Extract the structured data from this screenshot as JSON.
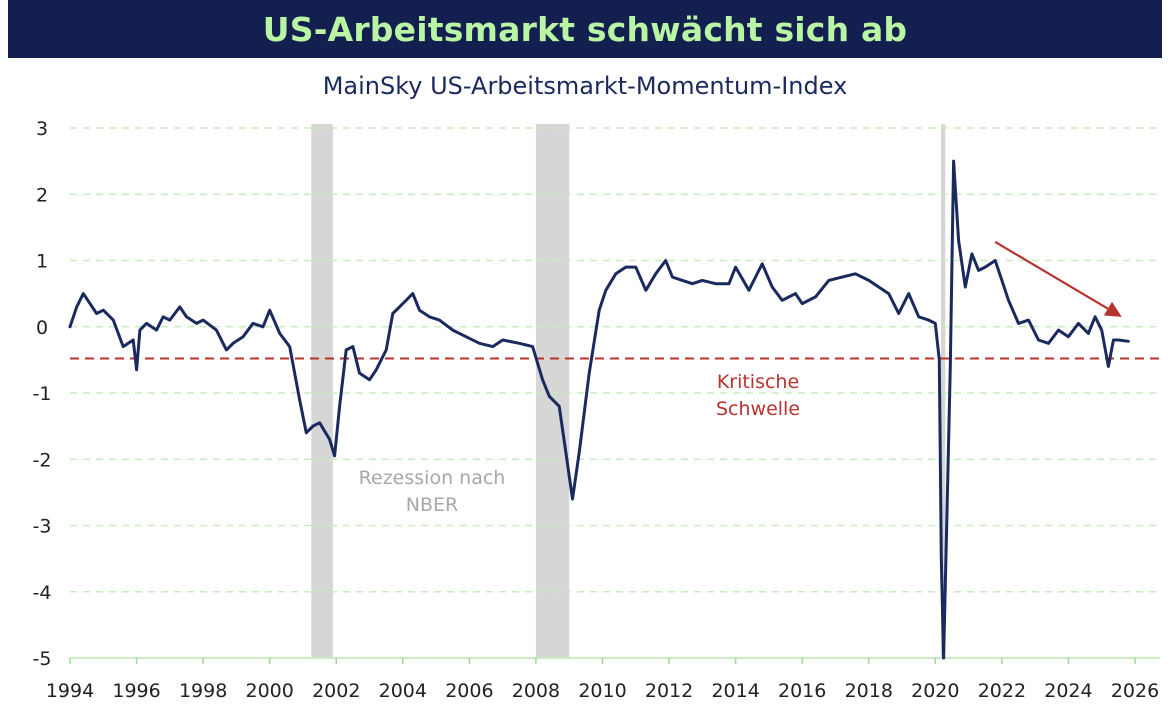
{
  "chart_data": {
    "type": "line",
    "title": "US-Arbeitsmarkt schwächt sich ab",
    "subtitle": "MainSky US-Arbeitsmarkt-Momentum-Index",
    "xlabel": "",
    "ylabel": "",
    "xlim": [
      1994,
      2026
    ],
    "ylim": [
      -5,
      3
    ],
    "x_ticks": [
      "1994",
      "1996",
      "1998",
      "2000",
      "2002",
      "2004",
      "2006",
      "2008",
      "2010",
      "2012",
      "2014",
      "2016",
      "2018",
      "2020",
      "2022",
      "2024",
      "2026"
    ],
    "y_ticks": [
      "3",
      "2",
      "1",
      "0",
      "-1",
      "-2",
      "-3",
      "-4",
      "-5"
    ],
    "grid": "horizontal dashed",
    "colors": {
      "line": "#1b2a5e",
      "threshold": "#b8322e",
      "recession": "#d6d6d6",
      "grid": "#c9ecc0",
      "banner": "#13204f",
      "banner_text": "#b9f5a4"
    },
    "recessions": [
      {
        "start": 2001.25,
        "end": 2001.9
      },
      {
        "start": 2008.0,
        "end": 2009.0
      },
      {
        "start": 2020.17,
        "end": 2020.3
      }
    ],
    "threshold": {
      "value": -0.48,
      "label_line1": "Kritische",
      "label_line2": "Schwelle"
    },
    "recession_label": {
      "line1": "Rezession nach",
      "line2": "NBER"
    },
    "trend_arrow": {
      "from": [
        2021.8,
        1.28
      ],
      "to": [
        2025.6,
        0.15
      ]
    },
    "series": [
      {
        "x": [
          1994.0,
          1994.2,
          1994.4,
          1994.6,
          1994.8,
          1995.0,
          1995.3,
          1995.6,
          1995.9,
          1996.0,
          1996.1,
          1996.3,
          1996.6,
          1996.8,
          1997.0,
          1997.3,
          1997.5,
          1997.8,
          1998.0,
          1998.4,
          1998.7,
          1998.9,
          1999.2,
          1999.5,
          1999.8,
          2000.0,
          2000.3,
          2000.6,
          2000.9,
          2001.1,
          2001.3,
          2001.5,
          2001.8,
          2001.95,
          2002.1,
          2002.3,
          2002.5,
          2002.7,
          2003.0,
          2003.2,
          2003.5,
          2003.7,
          2003.9,
          2004.1,
          2004.3,
          2004.5,
          2004.8,
          2005.1,
          2005.5,
          2005.9,
          2006.3,
          2006.7,
          2007.0,
          2007.5,
          2007.9,
          2008.2,
          2008.4,
          2008.7,
          2008.9,
          2009.1,
          2009.3,
          2009.6,
          2009.9,
          2010.1,
          2010.4,
          2010.7,
          2011.0,
          2011.3,
          2011.6,
          2011.9,
          2012.1,
          2012.4,
          2012.7,
          2013.0,
          2013.4,
          2013.8,
          2014.0,
          2014.4,
          2014.8,
          2015.1,
          2015.4,
          2015.8,
          2016.0,
          2016.4,
          2016.8,
          2017.2,
          2017.6,
          2018.0,
          2018.3,
          2018.6,
          2018.9,
          2019.2,
          2019.5,
          2019.8,
          2020.0,
          2020.12,
          2020.18,
          2020.25,
          2020.35,
          2020.45,
          2020.55,
          2020.7,
          2020.9,
          2021.1,
          2021.3,
          2021.5,
          2021.8,
          2022.0,
          2022.2,
          2022.5,
          2022.8,
          2023.1,
          2023.4,
          2023.7,
          2024.0,
          2024.3,
          2024.6,
          2024.8,
          2025.0,
          2025.2,
          2025.35,
          2025.5,
          2025.8
        ],
        "values": [
          0.0,
          0.3,
          0.5,
          0.35,
          0.2,
          0.25,
          0.1,
          -0.3,
          -0.2,
          -0.65,
          -0.05,
          0.05,
          -0.05,
          0.15,
          0.1,
          0.3,
          0.15,
          0.05,
          0.1,
          -0.05,
          -0.35,
          -0.25,
          -0.15,
          0.05,
          0.0,
          0.25,
          -0.1,
          -0.3,
          -1.1,
          -1.6,
          -1.5,
          -1.45,
          -1.7,
          -1.95,
          -1.2,
          -0.35,
          -0.3,
          -0.7,
          -0.8,
          -0.65,
          -0.35,
          0.2,
          0.3,
          0.4,
          0.5,
          0.25,
          0.15,
          0.1,
          -0.05,
          -0.15,
          -0.25,
          -0.3,
          -0.2,
          -0.25,
          -0.3,
          -0.8,
          -1.05,
          -1.2,
          -1.9,
          -2.6,
          -1.9,
          -0.7,
          0.25,
          0.55,
          0.8,
          0.9,
          0.9,
          0.55,
          0.8,
          1.0,
          0.75,
          0.7,
          0.65,
          0.7,
          0.65,
          0.65,
          0.9,
          0.55,
          0.95,
          0.6,
          0.4,
          0.5,
          0.35,
          0.45,
          0.7,
          0.75,
          0.8,
          0.7,
          0.6,
          0.5,
          0.2,
          0.5,
          0.15,
          0.1,
          0.05,
          -0.5,
          -3.5,
          -5.0,
          -2.8,
          -0.6,
          2.5,
          1.3,
          0.6,
          1.1,
          0.85,
          0.9,
          1.0,
          0.7,
          0.4,
          0.05,
          0.1,
          -0.2,
          -0.25,
          -0.05,
          -0.15,
          0.05,
          -0.1,
          0.15,
          -0.05,
          -0.6,
          -0.2,
          -0.2,
          -0.22
        ]
      }
    ]
  }
}
